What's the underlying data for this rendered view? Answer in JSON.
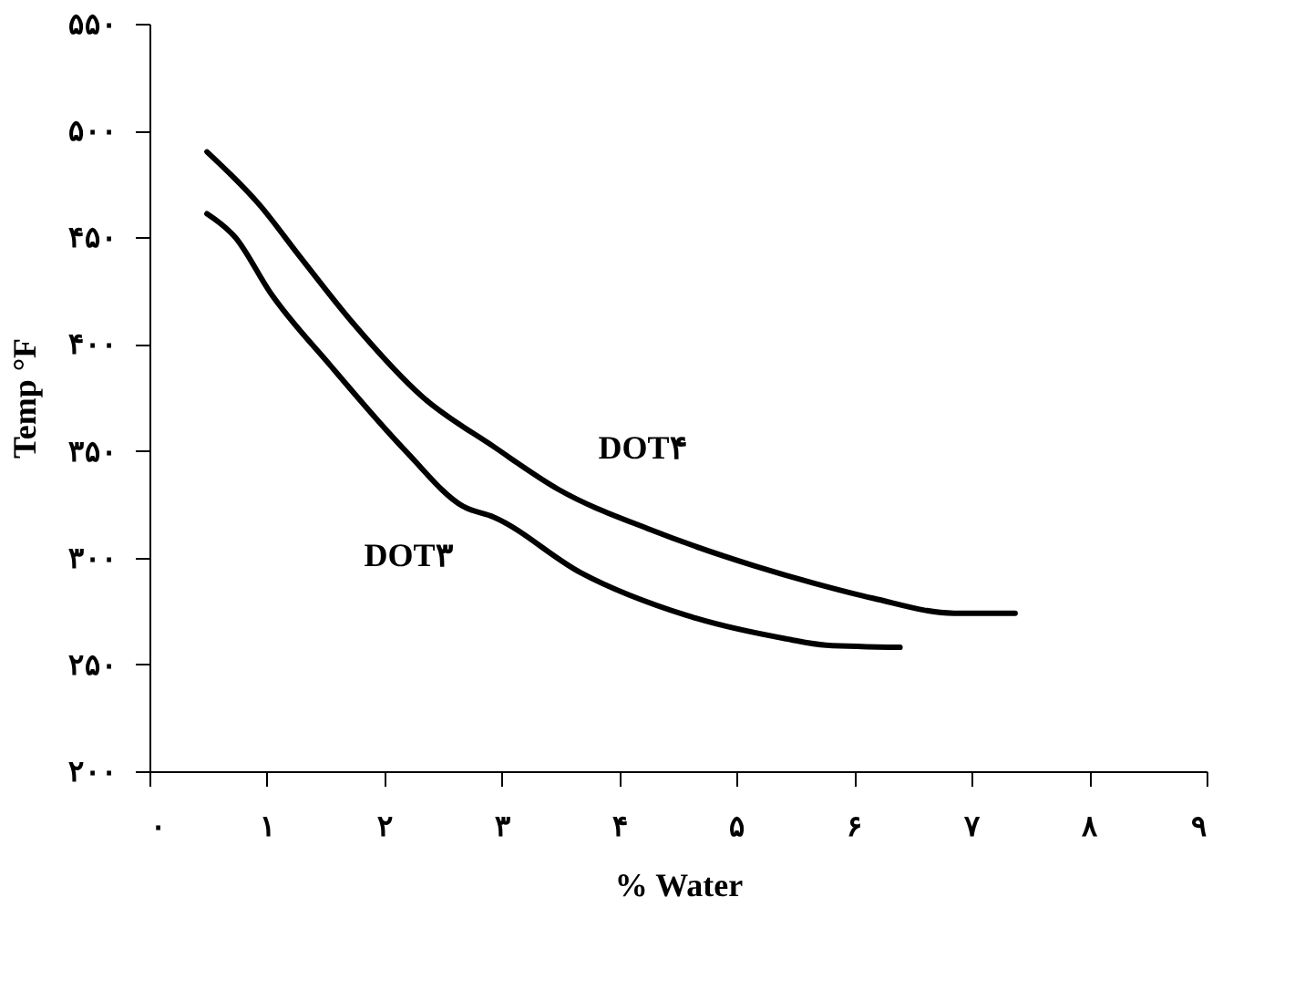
{
  "chart_data": {
    "type": "line",
    "xlabel": "% Water",
    "ylabel": "Temp °F",
    "xlim": [
      0,
      9
    ],
    "ylim": [
      200,
      550
    ],
    "xticks": [
      {
        "value": 0,
        "label": "۰"
      },
      {
        "value": 1,
        "label": "۱"
      },
      {
        "value": 2,
        "label": "۲"
      },
      {
        "value": 3,
        "label": "۳"
      },
      {
        "value": 4,
        "label": "۴"
      },
      {
        "value": 5,
        "label": "۵"
      },
      {
        "value": 6,
        "label": "۶"
      },
      {
        "value": 7,
        "label": "۷"
      },
      {
        "value": 8,
        "label": "۸"
      },
      {
        "value": 9,
        "label": "۹"
      }
    ],
    "yticks": [
      {
        "value": 200,
        "label": "۲۰۰"
      },
      {
        "value": 250,
        "label": "۲۵۰"
      },
      {
        "value": 300,
        "label": "۳۰۰"
      },
      {
        "value": 350,
        "label": "۳۵۰"
      },
      {
        "value": 400,
        "label": "۴۰۰"
      },
      {
        "value": 450,
        "label": "۴۵۰"
      },
      {
        "value": 500,
        "label": "۵۰۰"
      },
      {
        "value": 550,
        "label": "۵۵۰"
      }
    ],
    "grid": false,
    "marker": "none",
    "line_style": "solid",
    "series": [
      {
        "name": "DOT۴",
        "color": "#000000",
        "x": [
          0.49,
          0.94,
          1.28,
          1.73,
          2.33,
          2.93,
          3.48,
          4.27,
          5.16,
          5.66,
          6.16,
          6.85,
          7.37
        ],
        "values": [
          490,
          465,
          441,
          410,
          375,
          352,
          332,
          313,
          296,
          288,
          281,
          274,
          274
        ]
      },
      {
        "name": "DOT۳",
        "color": "#000000",
        "x": [
          0.49,
          0.73,
          1.03,
          1.54,
          2.18,
          2.67,
          2.93,
          3.67,
          4.57,
          5.42,
          5.76,
          6.39
        ],
        "values": [
          461,
          450,
          424,
          390,
          350,
          324,
          319,
          293,
          273,
          262,
          259,
          258
        ]
      }
    ]
  }
}
